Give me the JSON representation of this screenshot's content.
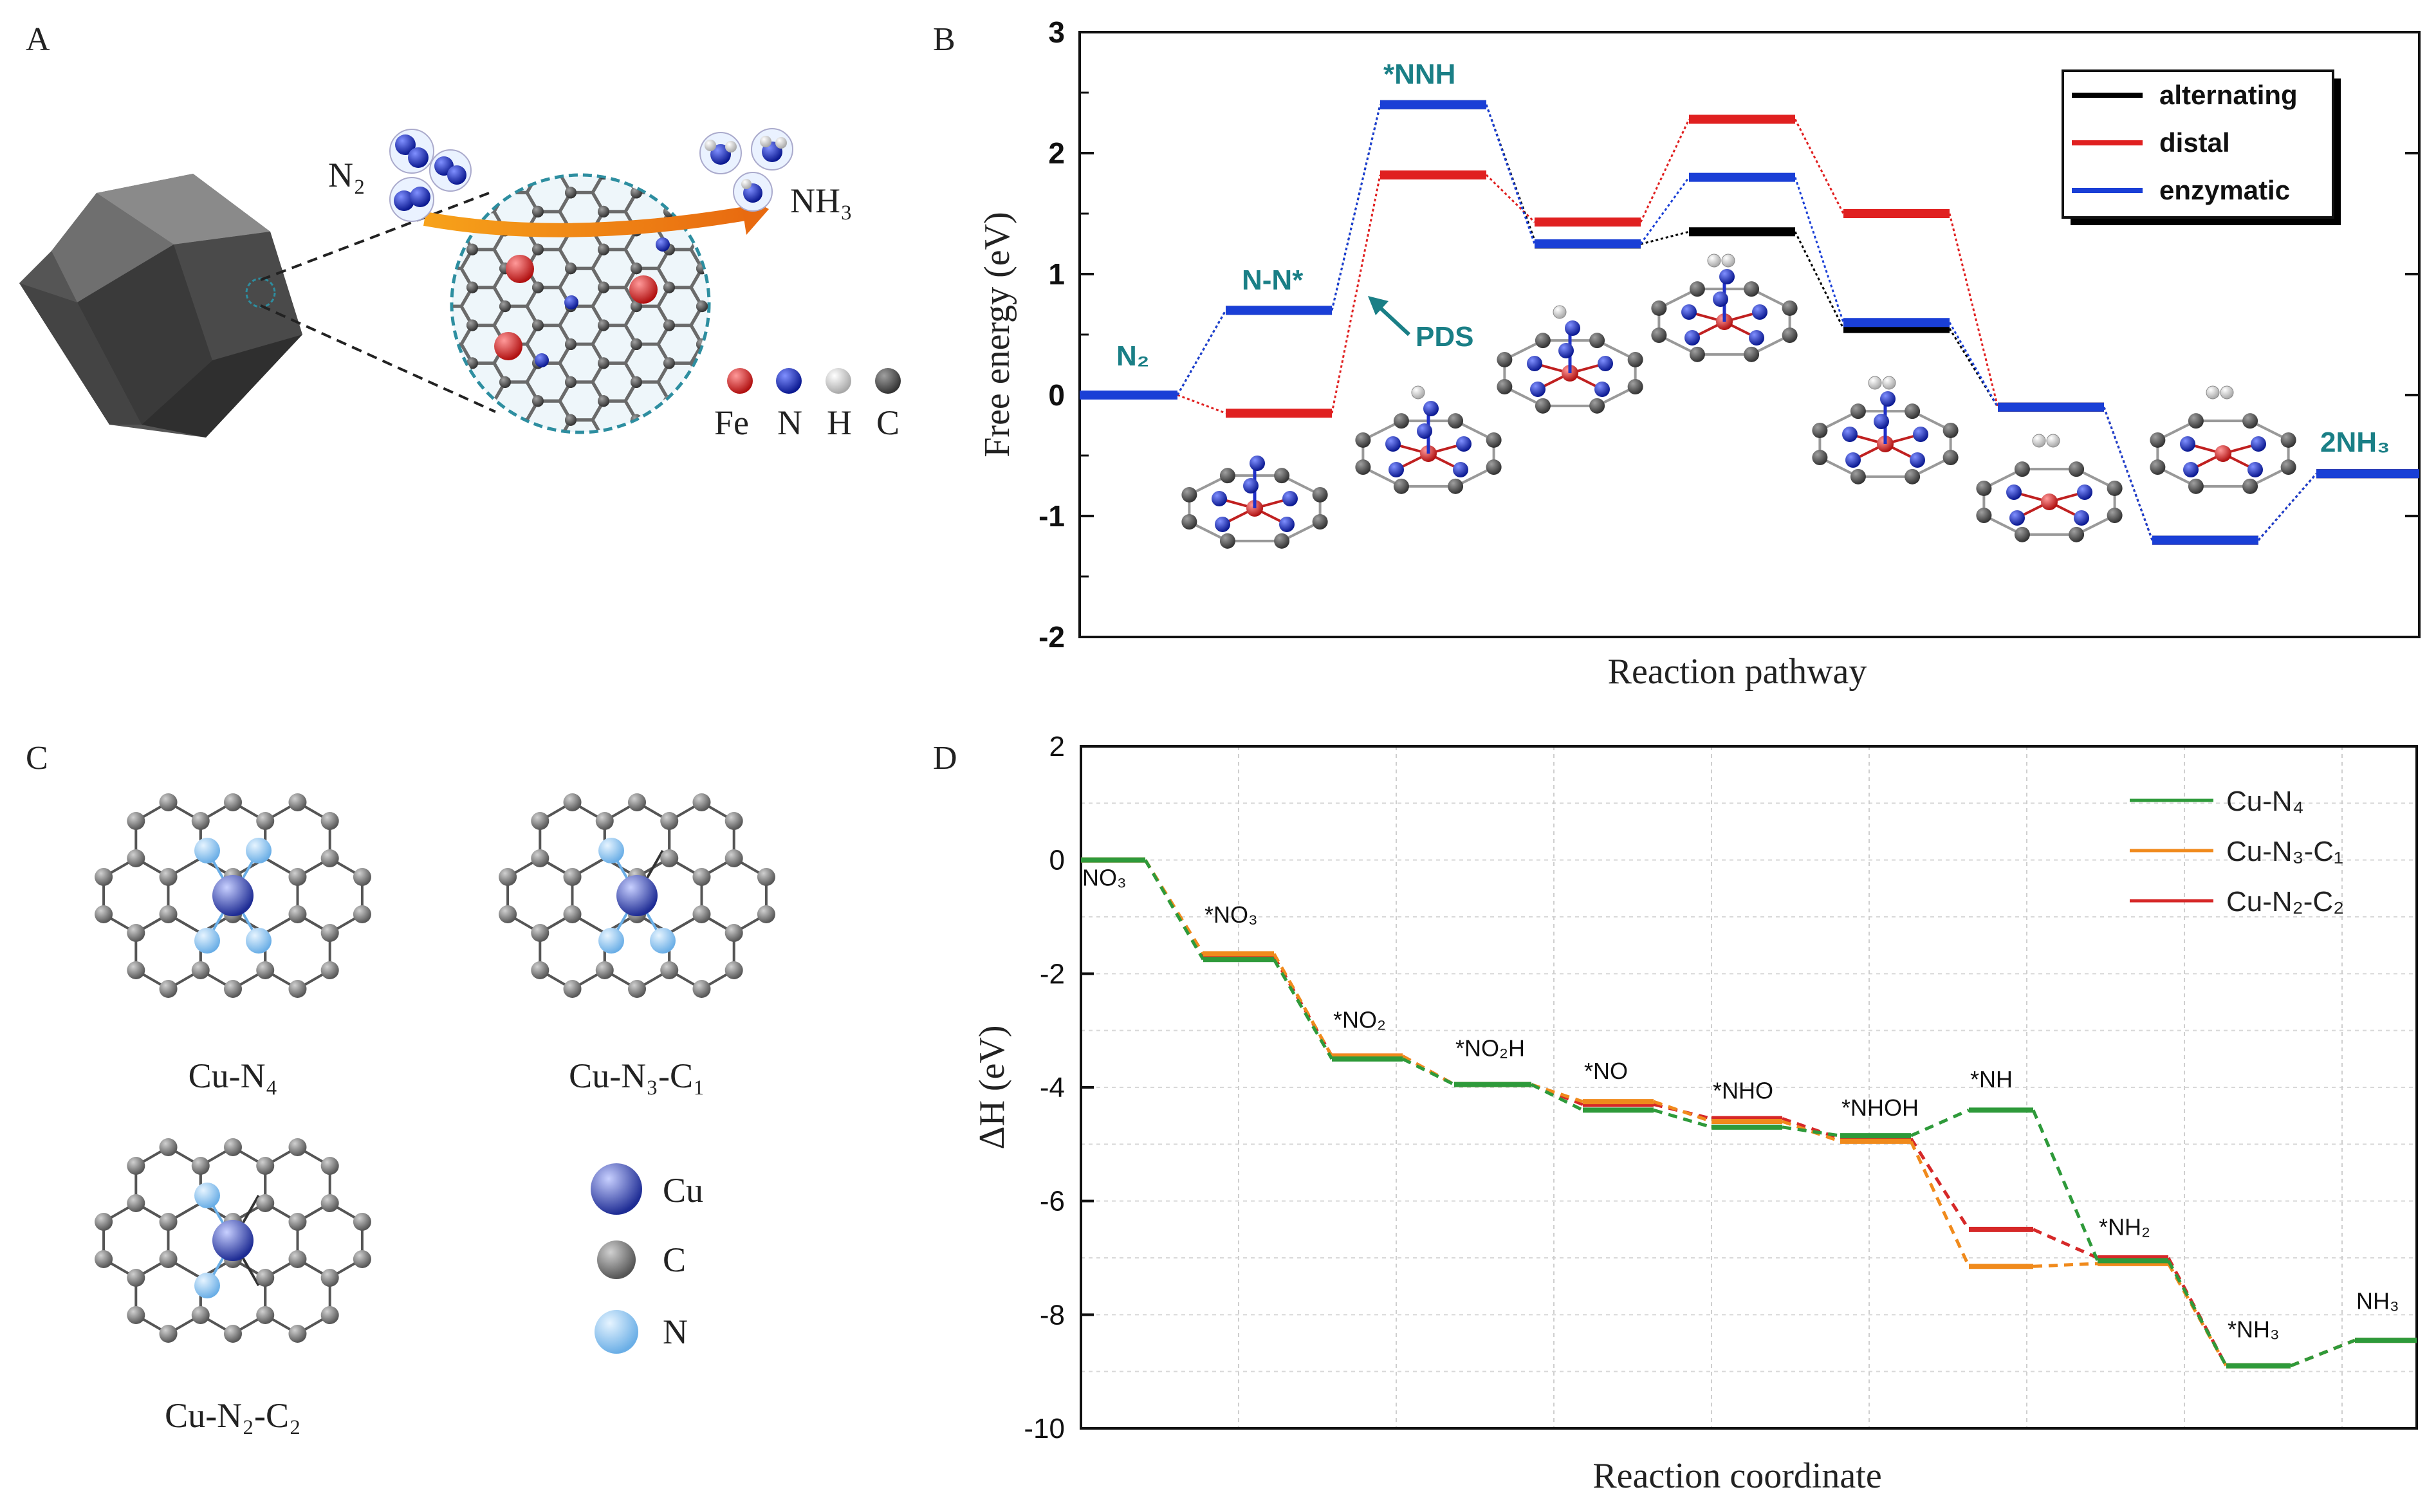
{
  "panels": {
    "A": {
      "letter": "A",
      "labels": {
        "reactant": "N₂",
        "product": "NH₃"
      },
      "legend": [
        "Fe",
        "N",
        "H",
        "C"
      ],
      "colors": {
        "Fe": "#d42a2a",
        "N": "#2030c8",
        "H": "#e8e8e8",
        "C": "#555555"
      }
    },
    "B": {
      "letter": "B",
      "annotation": "PDS",
      "chart_data": {
        "type": "line",
        "title": "",
        "xlabel": "Reaction pathway",
        "ylabel": "Free energy (eV)",
        "ylim": [
          -2,
          3
        ],
        "yticks": [
          "3",
          "2",
          "1",
          "0",
          "-1",
          "-2"
        ],
        "state_labels": [
          "N₂",
          "N-N*",
          "*NNH",
          "2NH₃"
        ],
        "series": [
          {
            "name": "alternating",
            "color": "#000000",
            "values": [
              0,
              0.7,
              2.4,
              1.28,
              1.35,
              0.55,
              -0.1,
              -1.2,
              -0.65
            ]
          },
          {
            "name": "distal",
            "color": "#e02020",
            "values": [
              0,
              -0.15,
              1.82,
              1.43,
              2.28,
              1.5,
              -0.1,
              -1.2,
              -0.65
            ]
          },
          {
            "name": "enzymatic",
            "color": "#1a3fd6",
            "values": [
              0,
              0.7,
              2.4,
              1.25,
              1.8,
              0.6,
              -0.1,
              -1.2,
              -0.65
            ]
          }
        ]
      }
    },
    "C": {
      "letter": "C",
      "structures": [
        "Cu-N₄",
        "Cu-N₃-C₁",
        "Cu-N₂-C₂"
      ],
      "legend": [
        "Cu",
        "C",
        "N"
      ],
      "colors": {
        "Cu": "#3346b8",
        "C": "#777777",
        "N": "#8ec3ec"
      }
    },
    "D": {
      "letter": "D",
      "chart_data": {
        "type": "line",
        "title": "",
        "xlabel": "Reaction coordinate",
        "ylabel": "ΔH (eV)",
        "ylim": [
          -10,
          2
        ],
        "yticks": [
          "2",
          "0",
          "-2",
          "-4",
          "-6",
          "-8",
          "-10"
        ],
        "state_labels": [
          "NO₃",
          "*NO₃",
          "*NO₂",
          "*NO₂H",
          "*NO",
          "*NHO",
          "*NHOH",
          "*NH",
          "*NH₂",
          "*NH₃",
          "NH₃"
        ],
        "series": [
          {
            "name": "Cu-N₄",
            "color": "#2e9a3a",
            "values": [
              0,
              -1.75,
              -3.5,
              -3.95,
              -4.4,
              -4.7,
              -4.85,
              -4.4,
              -7.05,
              -8.9,
              -8.45
            ]
          },
          {
            "name": "Cu-N₃-C₁",
            "color": "#f08a1c",
            "values": [
              0,
              -1.65,
              -3.45,
              -3.95,
              -4.25,
              -4.6,
              -4.95,
              -7.15,
              -7.1,
              -8.9,
              -8.45
            ]
          },
          {
            "name": "Cu-N₂-C₂",
            "color": "#d62828",
            "values": [
              0,
              -1.7,
              -3.45,
              -3.95,
              -4.3,
              -4.55,
              -4.9,
              -6.5,
              -7.0,
              -8.9,
              -8.45
            ]
          }
        ]
      }
    }
  }
}
